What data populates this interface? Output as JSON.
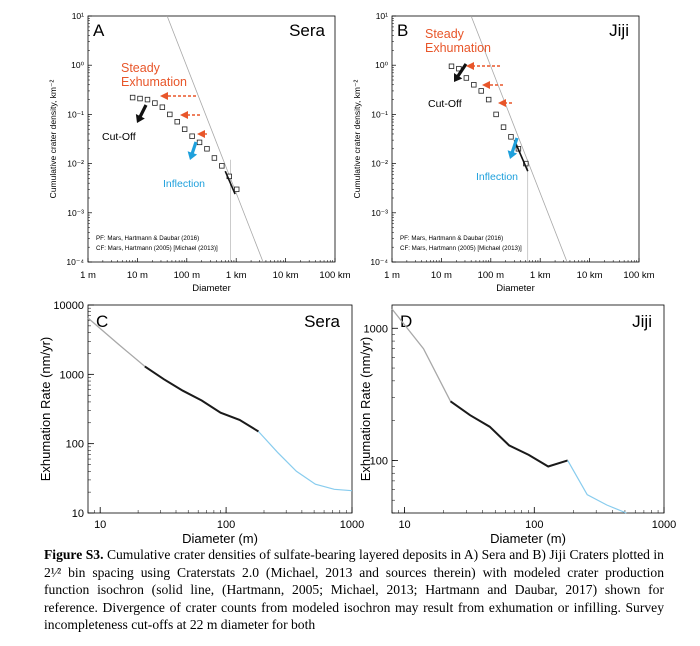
{
  "colors": {
    "orange": "#e8562a",
    "blue": "#1ea0dc",
    "steady_text": "#e8562a",
    "inflection_text": "#1ea0dc",
    "gray": "#a8a8a8",
    "dark": "#1a1a1a",
    "light_blue": "#88ccee"
  },
  "chart_data": [
    {
      "panel": "A",
      "name": "Sera",
      "type": "scatter",
      "xlabel": "Diameter",
      "ylabel": "Cumulative crater density, km⁻²",
      "x_ticks": [
        "1 m",
        "10 m",
        "100 m",
        "1 km",
        "10 km",
        "100 km"
      ],
      "y_ticks": [
        "10⁻⁴",
        "10⁻³",
        "10⁻²",
        "10⁻¹",
        "10⁰",
        "10¹"
      ],
      "xlim": [
        1,
        100000
      ],
      "ylim": [
        0.0001,
        10
      ],
      "log_x": true,
      "log_y": true,
      "points_diameter_m": [
        8,
        11.3,
        16,
        22.6,
        32,
        45.3,
        64,
        90.5,
        128,
        181,
        256,
        362,
        512,
        724,
        1024
      ],
      "points_density": [
        0.22,
        0.21,
        0.2,
        0.17,
        0.14,
        0.1,
        0.071,
        0.05,
        0.036,
        0.027,
        0.02,
        0.013,
        0.009,
        0.0055,
        0.003
      ],
      "isochron": [
        [
          40,
          10
        ],
        [
          3500,
          0.0001
        ]
      ],
      "annotations": {
        "steady": "Steady",
        "exhumation": "Exhumation",
        "cutoff": "Cut-Off",
        "inflection": "Inflection"
      },
      "notes": [
        "PF: Mars, Hartmann & Daubar (2016)",
        "CF: Mars, Hartmann (2005) [Michael (2013)]"
      ]
    },
    {
      "panel": "B",
      "name": "Jiji",
      "type": "scatter",
      "xlabel": "Diameter",
      "ylabel": "Cumulative crater density, km⁻²",
      "x_ticks": [
        "1 m",
        "10 m",
        "100 m",
        "1 km",
        "10 km",
        "100 km"
      ],
      "y_ticks": [
        "10⁻⁴",
        "10⁻³",
        "10⁻²",
        "10⁻¹",
        "10⁰",
        "10¹"
      ],
      "xlim": [
        1,
        100000
      ],
      "ylim": [
        0.0001,
        10
      ],
      "log_x": true,
      "log_y": true,
      "points_diameter_m": [
        16,
        22.6,
        32,
        45.3,
        64,
        90.5,
        128,
        181,
        256,
        362,
        512
      ],
      "points_density": [
        0.95,
        0.85,
        0.55,
        0.4,
        0.3,
        0.2,
        0.1,
        0.055,
        0.035,
        0.02,
        0.01
      ],
      "isochron": [
        [
          40,
          10
        ],
        [
          3500,
          0.0001
        ]
      ],
      "annotations": {
        "steady": "Steady",
        "exhumation": "Exhumation",
        "cutoff": "Cut-Off",
        "inflection": "Inflection"
      },
      "notes": [
        "PF: Mars, Hartmann & Daubar (2016)",
        "CF: Mars, Hartmann (2005) [Michael (2013)]"
      ]
    },
    {
      "panel": "C",
      "name": "Sera",
      "type": "line",
      "xlabel": "Diameter (m)",
      "ylabel": "Exhumation Rate (nm/yr)",
      "x_ticks": [
        "10",
        "100",
        "1000"
      ],
      "y_ticks": [
        "10",
        "100",
        "1000",
        "10000"
      ],
      "xlim": [
        8,
        1000
      ],
      "ylim": [
        10,
        10000
      ],
      "log_x": true,
      "log_y": true,
      "series": [
        {
          "segment": "gray",
          "x": [
            8,
            14,
            22.6
          ],
          "y": [
            6500,
            2700,
            1300
          ]
        },
        {
          "segment": "black",
          "x": [
            22.6,
            32,
            45.3,
            64,
            90.5,
            128,
            181
          ],
          "y": [
            1300,
            850,
            580,
            420,
            280,
            220,
            150
          ]
        },
        {
          "segment": "blue",
          "x": [
            181,
            256,
            362,
            512,
            724,
            1000
          ],
          "y": [
            150,
            75,
            40,
            26,
            22,
            21
          ]
        }
      ]
    },
    {
      "panel": "D",
      "name": "Jiji",
      "type": "line",
      "xlabel": "Diameter (m)",
      "ylabel": "Exhumation Rate (nm/yr)",
      "x_ticks": [
        "10",
        "100",
        "1000"
      ],
      "y_ticks": [
        "100",
        "1000"
      ],
      "xlim": [
        8,
        1000
      ],
      "ylim": [
        40,
        1500
      ],
      "log_x": true,
      "log_y": true,
      "series": [
        {
          "segment": "gray",
          "x": [
            8,
            14,
            22.6
          ],
          "y": [
            1400,
            700,
            280
          ]
        },
        {
          "segment": "black",
          "x": [
            22.6,
            32,
            45.3,
            64,
            90.5,
            128,
            181
          ],
          "y": [
            280,
            220,
            180,
            130,
            110,
            90,
            100
          ]
        },
        {
          "segment": "blue",
          "x": [
            181,
            256,
            362,
            512
          ],
          "y": [
            100,
            55,
            46,
            40
          ]
        }
      ]
    }
  ],
  "caption": {
    "label": "Figure S3.",
    "text": " Cumulative crater densities of sulfate-bearing layered deposits in A) Sera and B) Jiji Craters plotted in 2¹⁄² bin spacing using Craterstats 2.0 (Michael, 2013 and sources therein) with modeled crater production function isochron (solid line, (Hartmann, 2005; Michael, 2013; Hartmann and Daubar, 2017) shown for reference. Divergence of crater counts from modeled isochron may result from exhumation or infilling. Survey incompleteness cut-offs at 22 m diameter for both"
  }
}
